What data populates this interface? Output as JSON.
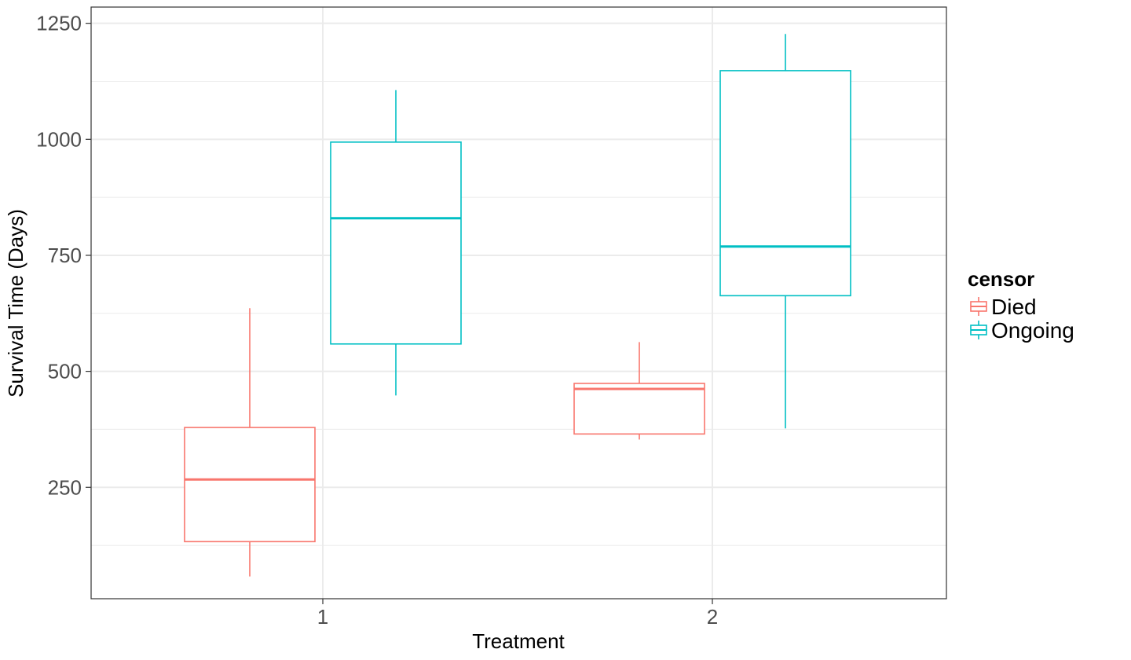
{
  "chart_data": {
    "type": "boxplot",
    "xlabel": "Treatment",
    "ylabel": "Survival Time (Days)",
    "categories": [
      "1",
      "2"
    ],
    "ylim": [
      10,
      1285
    ],
    "yticks": [
      250,
      500,
      750,
      1000,
      1250
    ],
    "yminor": [
      125,
      375,
      625,
      875,
      1125
    ],
    "grid": true,
    "legend": {
      "title": "censor",
      "position": "right",
      "entries": [
        "Died",
        "Ongoing"
      ]
    },
    "series": [
      {
        "name": "Died",
        "color": "#F8766D",
        "boxes": [
          {
            "category": "1",
            "min": 58,
            "q1": 133,
            "median": 267,
            "q3": 379,
            "max": 636
          },
          {
            "category": "2",
            "min": 353,
            "q1": 365,
            "median": 462,
            "q3": 474,
            "max": 563
          }
        ]
      },
      {
        "name": "Ongoing",
        "color": "#00BFC4",
        "boxes": [
          {
            "category": "1",
            "min": 448,
            "q1": 559,
            "median": 830,
            "q3": 994,
            "max": 1106
          },
          {
            "category": "2",
            "min": 377,
            "q1": 663,
            "median": 769,
            "q3": 1148,
            "max": 1227
          }
        ]
      }
    ]
  }
}
